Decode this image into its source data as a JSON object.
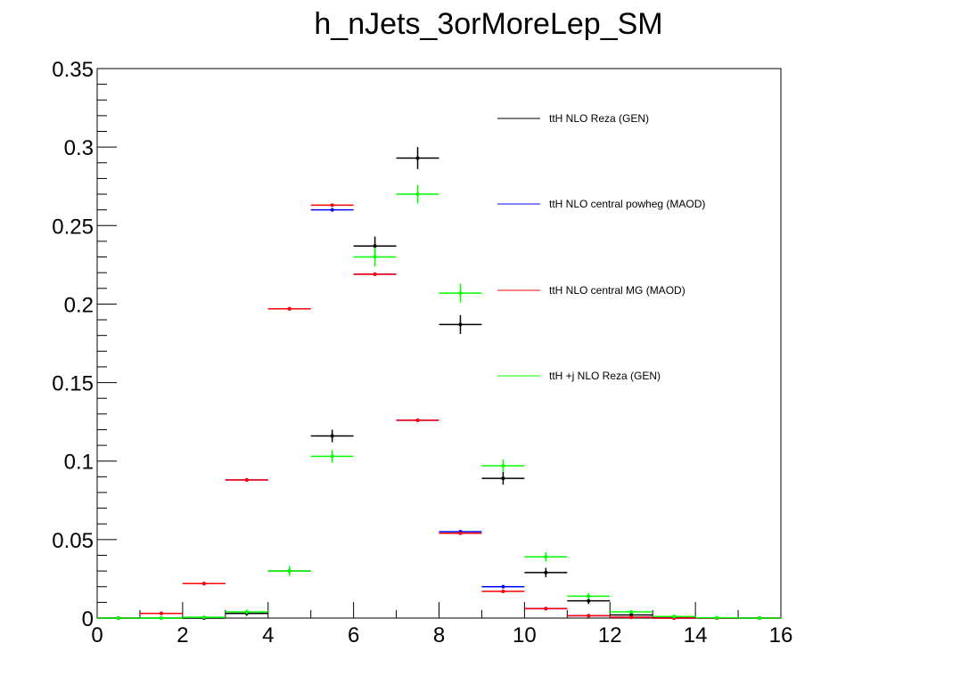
{
  "chart_data": {
    "type": "scatter",
    "title": "h_nJets_3orMoreLep_SM",
    "xlabel": "",
    "ylabel": "",
    "xlim": [
      0,
      16
    ],
    "ylim": [
      0,
      0.35
    ],
    "xticks": [
      "0",
      "2",
      "4",
      "6",
      "8",
      "10",
      "12",
      "14",
      "16"
    ],
    "yticks": [
      "0",
      "0.05",
      "0.1",
      "0.15",
      "0.2",
      "0.25",
      "0.3",
      "0.35"
    ],
    "bin_width": 1,
    "x": [
      0.5,
      1.5,
      2.5,
      3.5,
      4.5,
      5.5,
      6.5,
      7.5,
      8.5,
      9.5,
      10.5,
      11.5,
      12.5,
      13.5,
      14.5,
      15.5
    ],
    "legend_position": "top-right",
    "series": [
      {
        "name": "ttH NLO Reza (GEN)",
        "color": "#000000",
        "values": [
          0,
          0,
          0,
          0.003,
          0.03,
          0.116,
          0.237,
          0.293,
          0.187,
          0.089,
          0.029,
          0.011,
          0.002,
          0.0005,
          0,
          0
        ],
        "errors": [
          0,
          0,
          0,
          0.0015,
          0.003,
          0.004,
          0.006,
          0.007,
          0.006,
          0.004,
          0.003,
          0.002,
          0.001,
          0.0005,
          0,
          0
        ]
      },
      {
        "name": "ttH NLO central powheg (MAOD)",
        "color": "#0000ff",
        "values": [
          0,
          0.003,
          0.022,
          0.088,
          0.197,
          0.26,
          0.219,
          0.126,
          0.055,
          0.02,
          0.006,
          0.0015,
          0.0005,
          0,
          0,
          0
        ],
        "errors": [
          0,
          0.0005,
          0.0008,
          0.001,
          0.001,
          0.001,
          0.001,
          0.001,
          0.001,
          0.0007,
          0.0004,
          0.0003,
          0.0002,
          0,
          0,
          0
        ]
      },
      {
        "name": "ttH NLO central MG (MAOD)",
        "color": "#ff0000",
        "values": [
          0,
          0.003,
          0.022,
          0.088,
          0.197,
          0.263,
          0.219,
          0.126,
          0.054,
          0.017,
          0.006,
          0.0015,
          0.0005,
          0,
          0,
          0
        ],
        "errors": [
          0,
          0.0005,
          0.0008,
          0.001,
          0.001,
          0.001,
          0.001,
          0.001,
          0.001,
          0.0007,
          0.0004,
          0.0003,
          0.0002,
          0,
          0,
          0
        ]
      },
      {
        "name": "ttH +j NLO Reza (GEN)",
        "color": "#00ff00",
        "values": [
          0,
          0,
          0.0005,
          0.004,
          0.03,
          0.103,
          0.23,
          0.27,
          0.207,
          0.097,
          0.039,
          0.014,
          0.004,
          0.001,
          0.0002,
          0
        ],
        "errors": [
          0,
          0,
          0.0003,
          0.0015,
          0.003,
          0.004,
          0.006,
          0.006,
          0.006,
          0.004,
          0.003,
          0.002,
          0.001,
          0.0005,
          0.0002,
          0
        ]
      }
    ]
  }
}
